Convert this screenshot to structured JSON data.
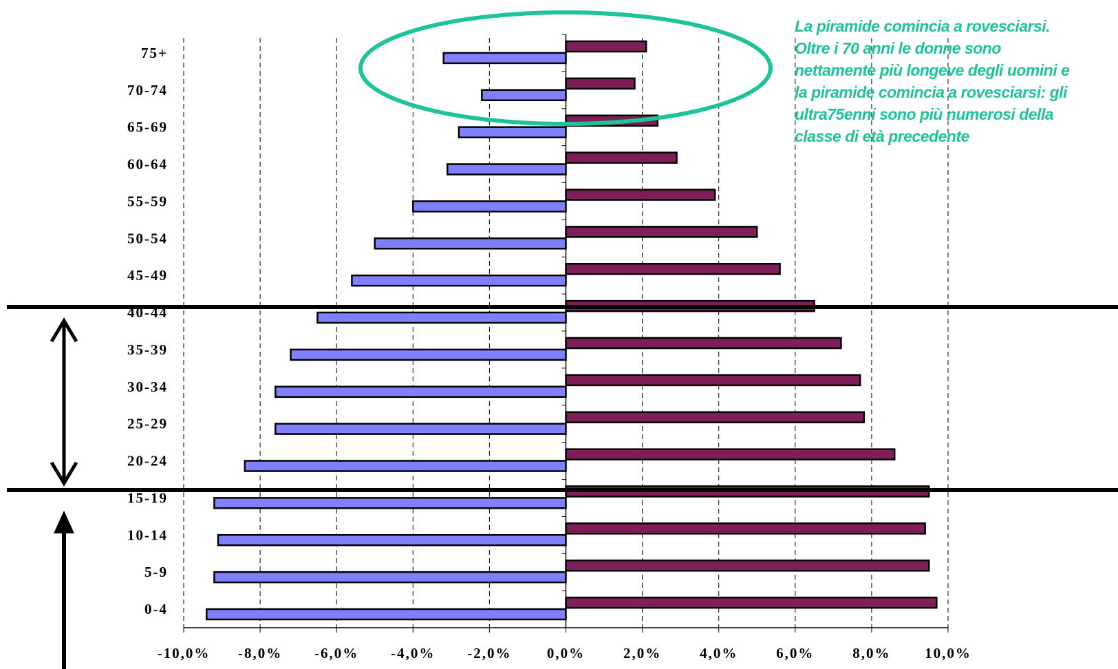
{
  "chart_data": {
    "type": "bar",
    "orientation": "horizontal",
    "categories": [
      "0-4",
      "5-9",
      "10-14",
      "15-19",
      "20-24",
      "25-29",
      "30-34",
      "35-39",
      "40-44",
      "45-49",
      "50-54",
      "55-59",
      "60-64",
      "65-69",
      "70-74",
      "75+"
    ],
    "series": [
      {
        "color": "#8080ff",
        "values": [
          -9.4,
          -9.2,
          -9.1,
          -9.2,
          -8.4,
          -7.6,
          -7.6,
          -7.2,
          -6.5,
          -5.6,
          -5.0,
          -4.0,
          -3.1,
          -2.8,
          -2.2,
          -3.2
        ]
      },
      {
        "color": "#7f1f5a",
        "values": [
          9.7,
          9.5,
          9.4,
          9.5,
          8.6,
          7.8,
          7.7,
          7.2,
          6.5,
          5.6,
          5.0,
          3.9,
          2.9,
          2.4,
          1.8,
          2.1
        ]
      }
    ],
    "xlim": [
      -10,
      10
    ],
    "x_ticks": [
      -10,
      -8,
      -6,
      -4,
      -2,
      0,
      2,
      4,
      6,
      8,
      10
    ],
    "x_tick_labels": [
      "-10,0%",
      "-8,0%",
      "-6,0%",
      "-4,0%",
      "-2,0%",
      "0,0%",
      "2,0%",
      "4,0%",
      "6,0%",
      "8,0%",
      "10,0%"
    ],
    "grid": "vertical-dashed",
    "title": "",
    "xlabel": "",
    "ylabel": ""
  },
  "annotation": {
    "text": "La piramide comincia a rovesciarsi. Oltre i 70 anni le donne sono nettamente più longeve degli uomini e la piramide comincia a rovesciarsi: gli ultra75enni sono più numerosi della classe di età precedente",
    "color": "#1ec39a"
  },
  "overlay_colors": {
    "highlight_ellipse": "#1ec39a",
    "lines_arrows": "#000000"
  }
}
